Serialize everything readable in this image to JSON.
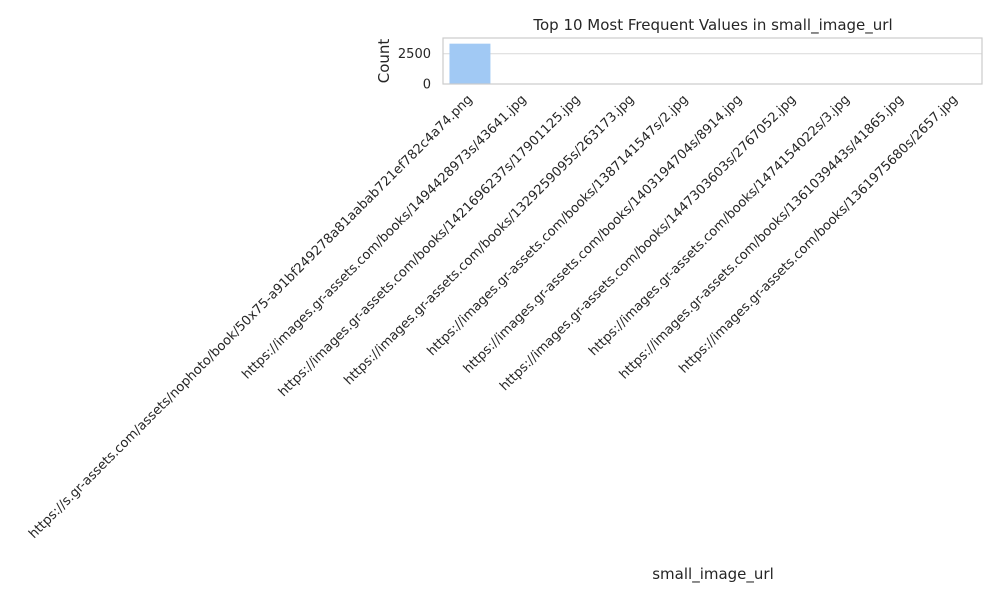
{
  "chart_data": {
    "type": "bar",
    "title": "Top 10 Most Frequent Values in small_image_url",
    "xlabel": "small_image_url",
    "ylabel": "Count",
    "categories": [
      "https://s.gr-assets.com/assets/nophoto/book/50x75-a91bf249278a81aabab721ef782c4a74.png",
      "https://images.gr-assets.com/books/1494428973s/43641.jpg",
      "https://images.gr-assets.com/books/1421696237s/17901125.jpg",
      "https://images.gr-assets.com/books/1329259095s/263173.jpg",
      "https://images.gr-assets.com/books/1387141547s/2.jpg",
      "https://images.gr-assets.com/books/1403194704s/8914.jpg",
      "https://images.gr-assets.com/books/1447303603s/2767052.jpg",
      "https://images.gr-assets.com/books/1474154022s/3.jpg",
      "https://images.gr-assets.com/books/1361039443s/41865.jpg",
      "https://images.gr-assets.com/books/1361975680s/2657.jpg"
    ],
    "values": [
      3332,
      1,
      1,
      1,
      1,
      1,
      1,
      1,
      1,
      1
    ],
    "ylim": [
      0,
      3800
    ],
    "yticks": [
      0,
      2500
    ],
    "grid": true,
    "colors": {
      "bar": "#a1c9f4",
      "grid": "#d9d9d9",
      "frame": "#cccccc",
      "text": "#262626"
    }
  }
}
